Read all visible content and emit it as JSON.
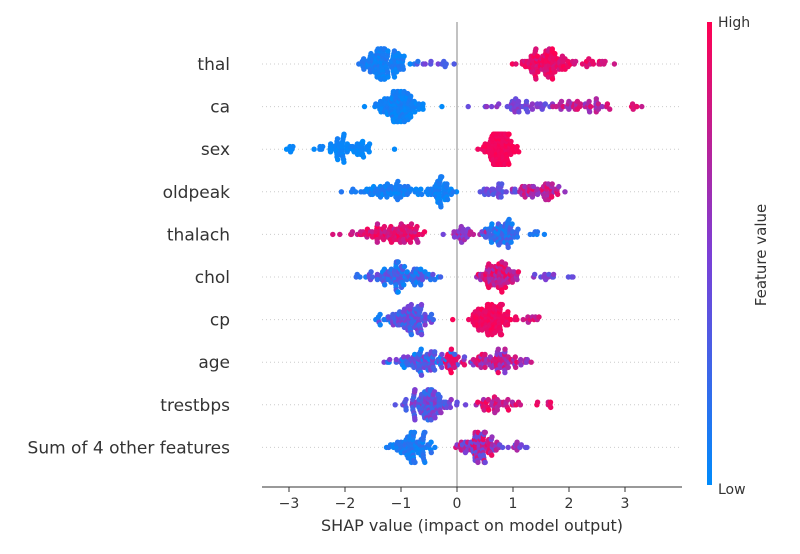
{
  "chart_data": {
    "type": "scatter",
    "subtype": "shap-beeswarm",
    "xlabel": "SHAP value (impact on model output)",
    "xlim": [
      -3.4,
      4.0
    ],
    "xticks": [
      -3,
      -2,
      -1,
      0,
      1,
      2,
      3
    ],
    "colorbar": {
      "label": "Feature value",
      "high_label": "High",
      "low_label": "Low",
      "low_color": "#008bfb",
      "mid_color": "#7c3fd6",
      "high_color": "#ff0052"
    },
    "features": [
      {
        "name": "thal",
        "clusters": [
          {
            "center": -1.3,
            "spread": 0.38,
            "count": 120,
            "value_low": 0.0,
            "value_high": 0.15
          },
          {
            "center": -0.4,
            "spread": 0.3,
            "count": 12,
            "value_low": 0.25,
            "value_high": 0.6
          },
          {
            "center": 1.6,
            "spread": 0.42,
            "count": 110,
            "value_low": 0.8,
            "value_high": 1.0
          },
          {
            "center": 2.5,
            "spread": 0.3,
            "count": 14,
            "value_low": 0.8,
            "value_high": 1.0
          }
        ]
      },
      {
        "name": "ca",
        "clusters": [
          {
            "center": -1.0,
            "spread": 0.32,
            "count": 120,
            "value_low": 0.0,
            "value_high": 0.12
          },
          {
            "center": 1.1,
            "spread": 0.45,
            "count": 40,
            "value_low": 0.35,
            "value_high": 0.6
          },
          {
            "center": 2.2,
            "spread": 0.45,
            "count": 45,
            "value_low": 0.55,
            "value_high": 0.9
          },
          {
            "center": 3.2,
            "spread": 0.2,
            "count": 6,
            "value_low": 0.75,
            "value_high": 0.95
          }
        ]
      },
      {
        "name": "sex",
        "clusters": [
          {
            "center": -2.0,
            "spread": 0.45,
            "count": 70,
            "value_low": 0.0,
            "value_high": 0.08
          },
          {
            "center": -3.0,
            "spread": 0.12,
            "count": 6,
            "value_low": 0.0,
            "value_high": 0.05
          },
          {
            "center": 0.75,
            "spread": 0.22,
            "count": 150,
            "value_low": 0.92,
            "value_high": 1.0
          }
        ]
      },
      {
        "name": "oldpeak",
        "clusters": [
          {
            "center": -1.3,
            "spread": 0.55,
            "count": 70,
            "value_low": 0.0,
            "value_high": 0.15
          },
          {
            "center": -0.3,
            "spread": 0.2,
            "count": 50,
            "value_low": 0.0,
            "value_high": 0.12
          },
          {
            "center": 0.7,
            "spread": 0.35,
            "count": 30,
            "value_low": 0.3,
            "value_high": 0.55
          },
          {
            "center": 1.5,
            "spread": 0.4,
            "count": 55,
            "value_low": 0.55,
            "value_high": 0.95
          }
        ]
      },
      {
        "name": "thalach",
        "clusters": [
          {
            "center": -1.2,
            "spread": 0.6,
            "count": 100,
            "value_low": 0.75,
            "value_high": 1.0
          },
          {
            "center": 0.1,
            "spread": 0.3,
            "count": 30,
            "value_low": 0.45,
            "value_high": 0.8
          },
          {
            "center": 0.8,
            "spread": 0.25,
            "count": 70,
            "value_low": 0.0,
            "value_high": 0.35
          },
          {
            "center": 1.5,
            "spread": 0.2,
            "count": 6,
            "value_low": 0.0,
            "value_high": 0.2
          }
        ]
      },
      {
        "name": "chol",
        "clusters": [
          {
            "center": -1.0,
            "spread": 0.55,
            "count": 110,
            "value_low": 0.0,
            "value_high": 0.45
          },
          {
            "center": 0.7,
            "spread": 0.3,
            "count": 85,
            "value_low": 0.6,
            "value_high": 1.0
          },
          {
            "center": 1.6,
            "spread": 0.3,
            "count": 15,
            "value_low": 0.3,
            "value_high": 0.6
          }
        ]
      },
      {
        "name": "cp",
        "clusters": [
          {
            "center": -0.8,
            "spread": 0.35,
            "count": 95,
            "value_low": 0.15,
            "value_high": 0.55
          },
          {
            "center": -1.4,
            "spread": 0.15,
            "count": 8,
            "value_low": 0.0,
            "value_high": 0.15
          },
          {
            "center": 0.6,
            "spread": 0.3,
            "count": 120,
            "value_low": 0.88,
            "value_high": 1.0
          },
          {
            "center": 1.3,
            "spread": 0.2,
            "count": 10,
            "value_low": 0.7,
            "value_high": 0.95
          }
        ]
      },
      {
        "name": "age",
        "clusters": [
          {
            "center": -0.6,
            "spread": 0.45,
            "count": 90,
            "value_low": 0.0,
            "value_high": 0.55
          },
          {
            "center": -0.1,
            "spread": 0.12,
            "count": 20,
            "value_low": 0.8,
            "value_high": 1.0
          },
          {
            "center": 0.8,
            "spread": 0.45,
            "count": 80,
            "value_low": 0.5,
            "value_high": 0.95
          }
        ]
      },
      {
        "name": "trestbps",
        "clusters": [
          {
            "center": -0.5,
            "spread": 0.32,
            "count": 110,
            "value_low": 0.15,
            "value_high": 0.6
          },
          {
            "center": 0.7,
            "spread": 0.35,
            "count": 40,
            "value_low": 0.65,
            "value_high": 1.0
          },
          {
            "center": 1.55,
            "spread": 0.25,
            "count": 8,
            "value_low": 0.8,
            "value_high": 1.0
          }
        ]
      },
      {
        "name": "Sum of 4 other features",
        "clusters": [
          {
            "center": -0.8,
            "spread": 0.3,
            "count": 90,
            "value_low": 0.0,
            "value_high": 0.2
          },
          {
            "center": 0.4,
            "spread": 0.3,
            "count": 100,
            "value_low": 0.35,
            "value_high": 0.95
          },
          {
            "center": 1.1,
            "spread": 0.15,
            "count": 10,
            "value_low": 0.35,
            "value_high": 0.7
          }
        ]
      }
    ]
  }
}
